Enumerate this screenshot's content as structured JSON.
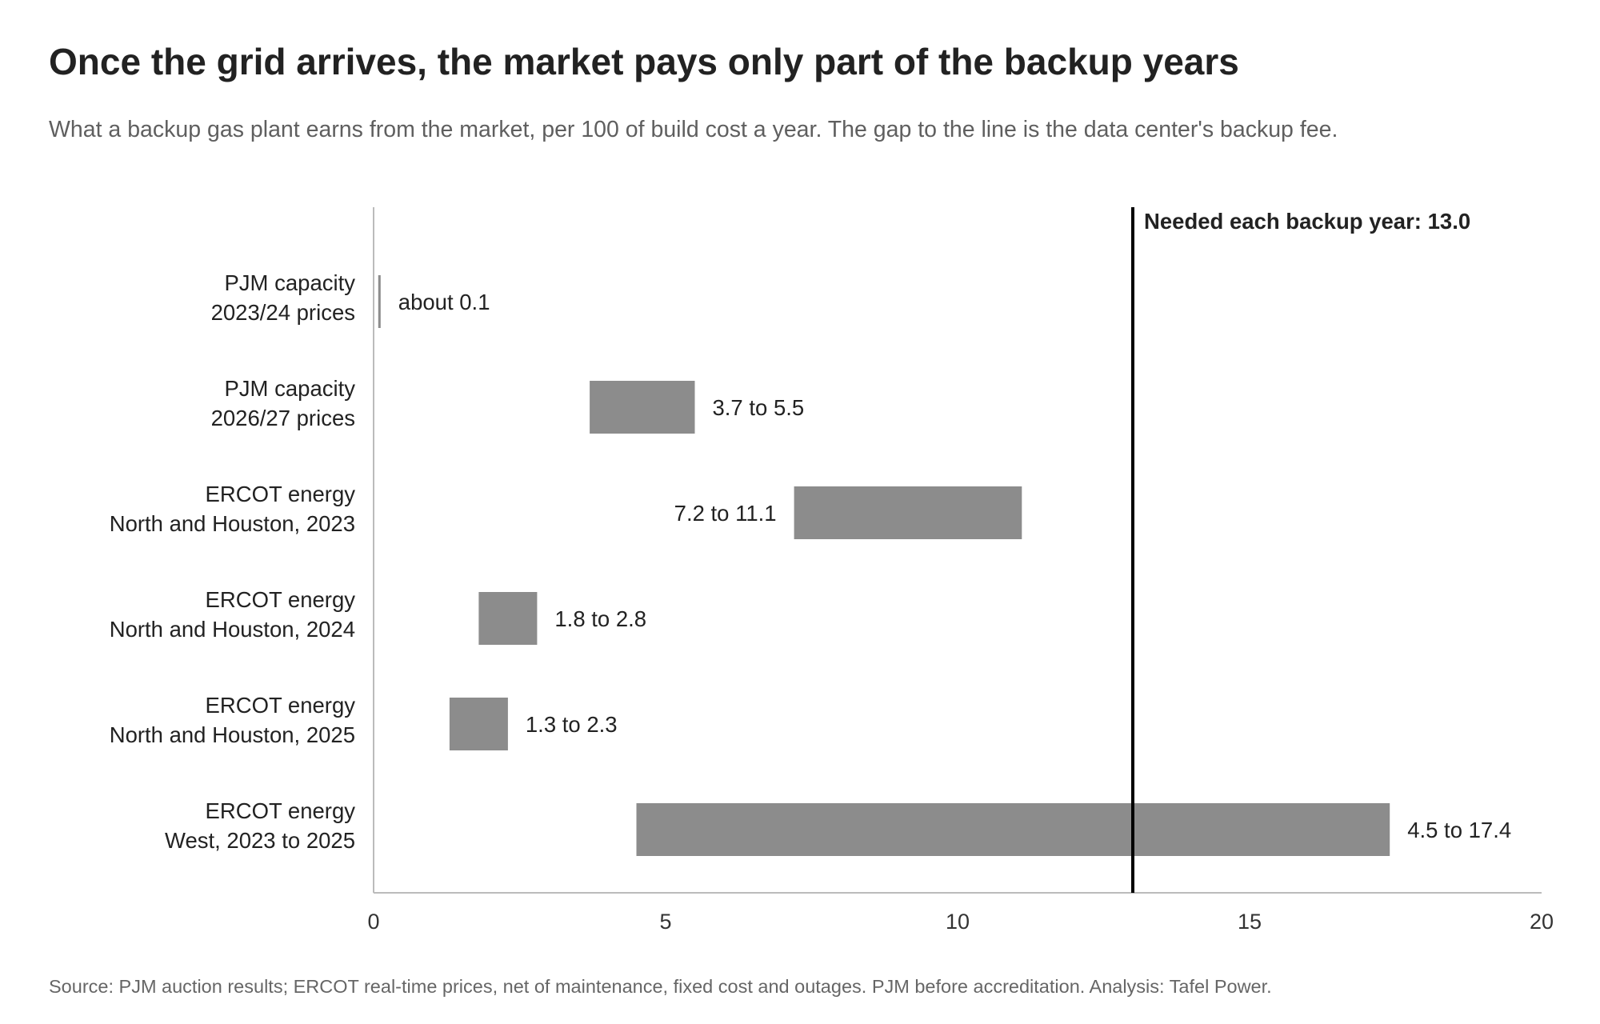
{
  "header": {
    "title": "Once the grid arrives, the market pays only part of the backup years",
    "subtitle": "What a backup gas plant earns from the market, per 100 of build cost a year. The gap to the line is the data center's backup fee."
  },
  "footer": {
    "source": "Source: PJM auction results; ERCOT real-time prices, net of maintenance, fixed cost and outages. PJM before accreditation. Analysis: Tafel Power."
  },
  "colors": {
    "bar": "#8c8c8c",
    "reference_line": "#000000",
    "axis": "#bbbbbb",
    "text": "#222222",
    "tick_text": "#333333"
  },
  "chart_data": {
    "type": "bar",
    "orientation": "horizontal",
    "style": "range",
    "xlim": [
      0,
      20
    ],
    "xticks": [
      0,
      5,
      10,
      15,
      20
    ],
    "grid": false,
    "categories": [
      [
        "PJM capacity",
        "2023/24 prices"
      ],
      [
        "PJM capacity",
        "2026/27 prices"
      ],
      [
        "ERCOT energy",
        "North and Houston, 2023"
      ],
      [
        "ERCOT energy",
        "North and Houston, 2024"
      ],
      [
        "ERCOT energy",
        "North and Houston, 2025"
      ],
      [
        "ERCOT energy",
        "West, 2023 to 2025"
      ]
    ],
    "ranges": [
      {
        "low": 0.1,
        "high": 0.1,
        "label": "about 0.1",
        "label_side": "right"
      },
      {
        "low": 3.7,
        "high": 5.5,
        "label": "3.7 to 5.5",
        "label_side": "right"
      },
      {
        "low": 7.2,
        "high": 11.1,
        "label": "7.2 to 11.1",
        "label_side": "left"
      },
      {
        "low": 1.8,
        "high": 2.8,
        "label": "1.8 to 2.8",
        "label_side": "right"
      },
      {
        "low": 1.3,
        "high": 2.3,
        "label": "1.3 to 2.3",
        "label_side": "right"
      },
      {
        "low": 4.5,
        "high": 17.4,
        "label": "4.5 to 17.4",
        "label_side": "right"
      }
    ],
    "reference_line": {
      "value": 13.0,
      "label": "Needed each backup year: 13.0"
    }
  }
}
